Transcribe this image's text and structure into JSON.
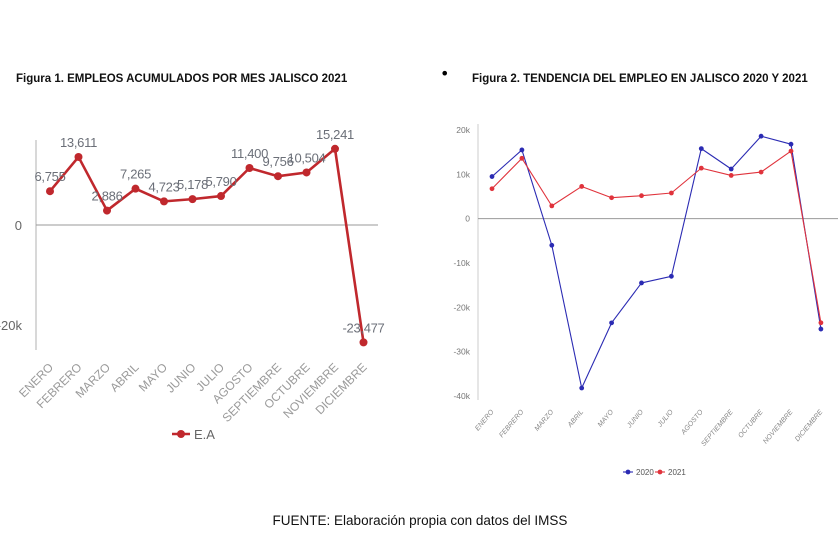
{
  "figure1_title": "Figura 1. EMPLEOS ACUMULADOS POR MES JALISCO 2021",
  "figure2_title": "Figura 2. TENDENCIA DEL EMPLEO EN JALISCO 2020 Y 2021",
  "source": "FUENTE: Elaboración propia con datos del IMSS",
  "bullet": "•",
  "chart_data": [
    {
      "type": "line",
      "title": "Figura 1. EMPLEOS ACUMULADOS POR MES JALISCO 2021",
      "categories": [
        "ENERO",
        "FEBRERO",
        "MARZO",
        "ABRIL",
        "MAYO",
        "JUNIO",
        "JULIO",
        "AGOSTO",
        "SEPTIEMBRE",
        "OCTUBRE",
        "NOVIEMBRE",
        "DICIEMBRE"
      ],
      "series": [
        {
          "name": "E.A",
          "color": "#c0282d",
          "values": [
            6755,
            13611,
            2886,
            7265,
            4723,
            5178,
            5790,
            11400,
            9756,
            10504,
            15241,
            -23477
          ]
        }
      ],
      "data_labels": [
        "6,755",
        "13,611",
        "2,886",
        "7,265",
        "4,723",
        "5,178",
        "5,790",
        "11,400",
        "9,756",
        "10,504",
        "15,241",
        "-23,477"
      ],
      "y_ticks": [
        {
          "value": 0,
          "label": "0"
        },
        {
          "value": -20000,
          "label": "-20k"
        }
      ],
      "grid": false,
      "legend": "bottom"
    },
    {
      "type": "line",
      "title": "Figura 2. TENDENCIA DEL EMPLEO EN JALISCO 2020 Y 2021",
      "categories": [
        "ENERO",
        "FEBRERO",
        "MARZO",
        "ABRIL",
        "MAYO",
        "JUNIO",
        "JULIO",
        "AGOSTO",
        "SEPTIEMBRE",
        "OCTUBRE",
        "NOVIEMBRE",
        "DICIEMBRE"
      ],
      "series": [
        {
          "name": "2020",
          "color": "#2b2bb3",
          "values": [
            9500,
            15500,
            -6000,
            -38200,
            -23500,
            -14500,
            -13000,
            15800,
            11200,
            18600,
            16800,
            -24900
          ]
        },
        {
          "name": "2021",
          "color": "#e0333c",
          "values": [
            6755,
            13611,
            2886,
            7265,
            4723,
            5178,
            5790,
            11400,
            9756,
            10504,
            15241,
            -23477
          ]
        }
      ],
      "y_ticks": [
        {
          "value": 20000,
          "label": "20k"
        },
        {
          "value": 10000,
          "label": "10k"
        },
        {
          "value": 0,
          "label": "0"
        },
        {
          "value": -10000,
          "label": "-10k"
        },
        {
          "value": -20000,
          "label": "-20k"
        },
        {
          "value": -30000,
          "label": "-30k"
        },
        {
          "value": -40000,
          "label": "-40k"
        }
      ],
      "ylim": [
        -40000,
        20000
      ],
      "grid": false,
      "legend": "bottom"
    }
  ]
}
